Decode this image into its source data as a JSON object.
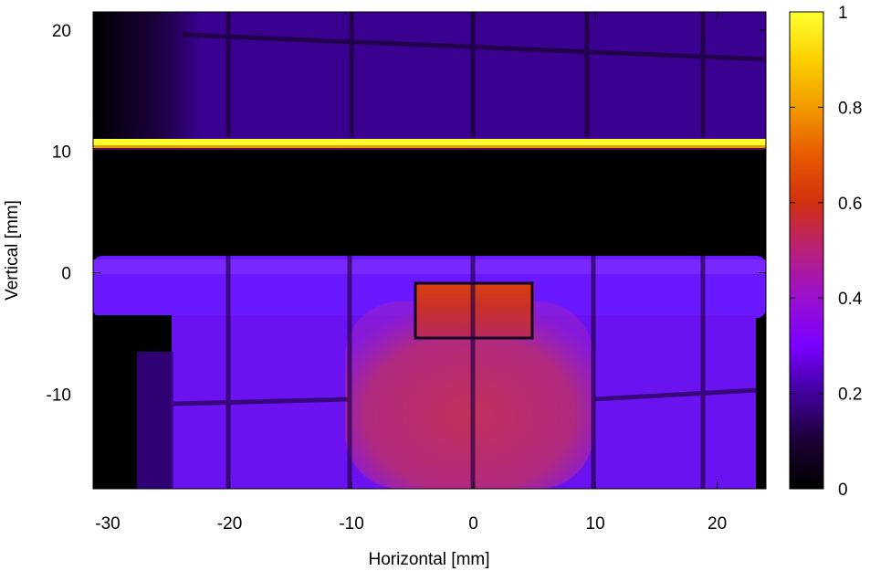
{
  "chart_data": {
    "type": "heatmap",
    "title": "",
    "xlabel": "Horizontal [mm]",
    "ylabel": "Vertical [mm]",
    "xlim": [
      -31.2,
      24
    ],
    "ylim": [
      -17.8,
      21.5
    ],
    "xticks": [
      -30,
      -20,
      -10,
      0,
      10,
      20
    ],
    "xtick_labels": [
      "-30",
      "-20",
      "-10",
      "0",
      "10",
      "20"
    ],
    "yticks": [
      -10,
      0,
      10,
      20
    ],
    "ytick_labels": [
      "-10",
      "0",
      "10",
      "20"
    ],
    "colorbar": {
      "range": [
        0,
        1
      ],
      "ticks": [
        0,
        0.2,
        0.4,
        0.6,
        0.8,
        1
      ],
      "tick_labels": [
        "0",
        "0.2",
        "0.4",
        "0.6",
        "0.8",
        "1"
      ],
      "palette": [
        "#000000",
        "#3d0088",
        "#8a00ff",
        "#c21a6a",
        "#e8400a",
        "#ffd700",
        "#ffff40"
      ]
    },
    "regions": [
      {
        "name": "upper-band",
        "x": [
          -31.2,
          24
        ],
        "y": [
          11,
          21.5
        ],
        "value": 0.17
      },
      {
        "name": "bright-stripe",
        "x": [
          -31.2,
          24
        ],
        "y": [
          10.5,
          10.9
        ],
        "value": 1.0
      },
      {
        "name": "dark-gap",
        "x": [
          -31.2,
          24
        ],
        "y": [
          1.3,
          10.3
        ],
        "value": 0.0
      },
      {
        "name": "horizontal-beam",
        "x": [
          -31.2,
          24
        ],
        "y": [
          -3.5,
          1.3
        ],
        "value": 0.3
      },
      {
        "name": "lower-body",
        "x": [
          -24.5,
          23
        ],
        "y": [
          -17.8,
          -3.5
        ],
        "value": 0.28
      },
      {
        "name": "central-hot-region",
        "x": [
          -10.5,
          9.5
        ],
        "y": [
          -17.8,
          -5.5
        ],
        "value": 0.45
      },
      {
        "name": "hot-window",
        "x": [
          -4.5,
          5
        ],
        "y": [
          -5.3,
          -1
        ],
        "value": 0.6
      }
    ]
  }
}
